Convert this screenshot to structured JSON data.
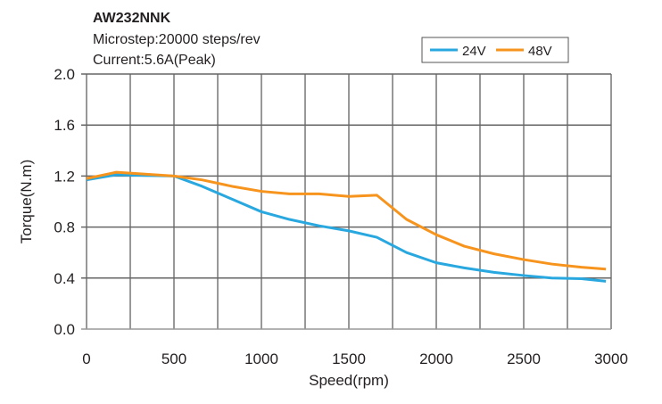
{
  "chart_data": {
    "type": "line",
    "title": "AW232NNK",
    "subtitle_lines": [
      "Microstep:20000 steps/rev",
      "Current:5.6A(Peak)"
    ],
    "xlabel": "Speed(rpm)",
    "ylabel": "Torque(N.m)",
    "xlim": [
      0,
      3000
    ],
    "ylim": [
      0,
      2.0
    ],
    "xticks": [
      "0",
      "500",
      "1000",
      "1500",
      "2000",
      "2500",
      "3000"
    ],
    "yticks": [
      "0.0",
      "0.4",
      "0.8",
      "1.2",
      "1.6",
      "2.0"
    ],
    "grid": true,
    "legend_position": "top-right",
    "x": [
      0,
      170,
      500,
      660,
      830,
      1000,
      1160,
      1330,
      1500,
      1660,
      1830,
      2000,
      2160,
      2330,
      2500,
      2660,
      2830,
      2970
    ],
    "series": [
      {
        "name": "24V",
        "color": "#29a8e0",
        "values": [
          1.17,
          1.21,
          1.2,
          1.12,
          1.02,
          0.92,
          0.86,
          0.81,
          0.77,
          0.72,
          0.6,
          0.52,
          0.48,
          0.445,
          0.42,
          0.4,
          0.395,
          0.375
        ]
      },
      {
        "name": "48V",
        "color": "#f7941d",
        "values": [
          1.18,
          1.23,
          1.2,
          1.17,
          1.12,
          1.08,
          1.06,
          1.06,
          1.04,
          1.05,
          0.86,
          0.74,
          0.65,
          0.59,
          0.545,
          0.51,
          0.485,
          0.47
        ]
      }
    ]
  }
}
